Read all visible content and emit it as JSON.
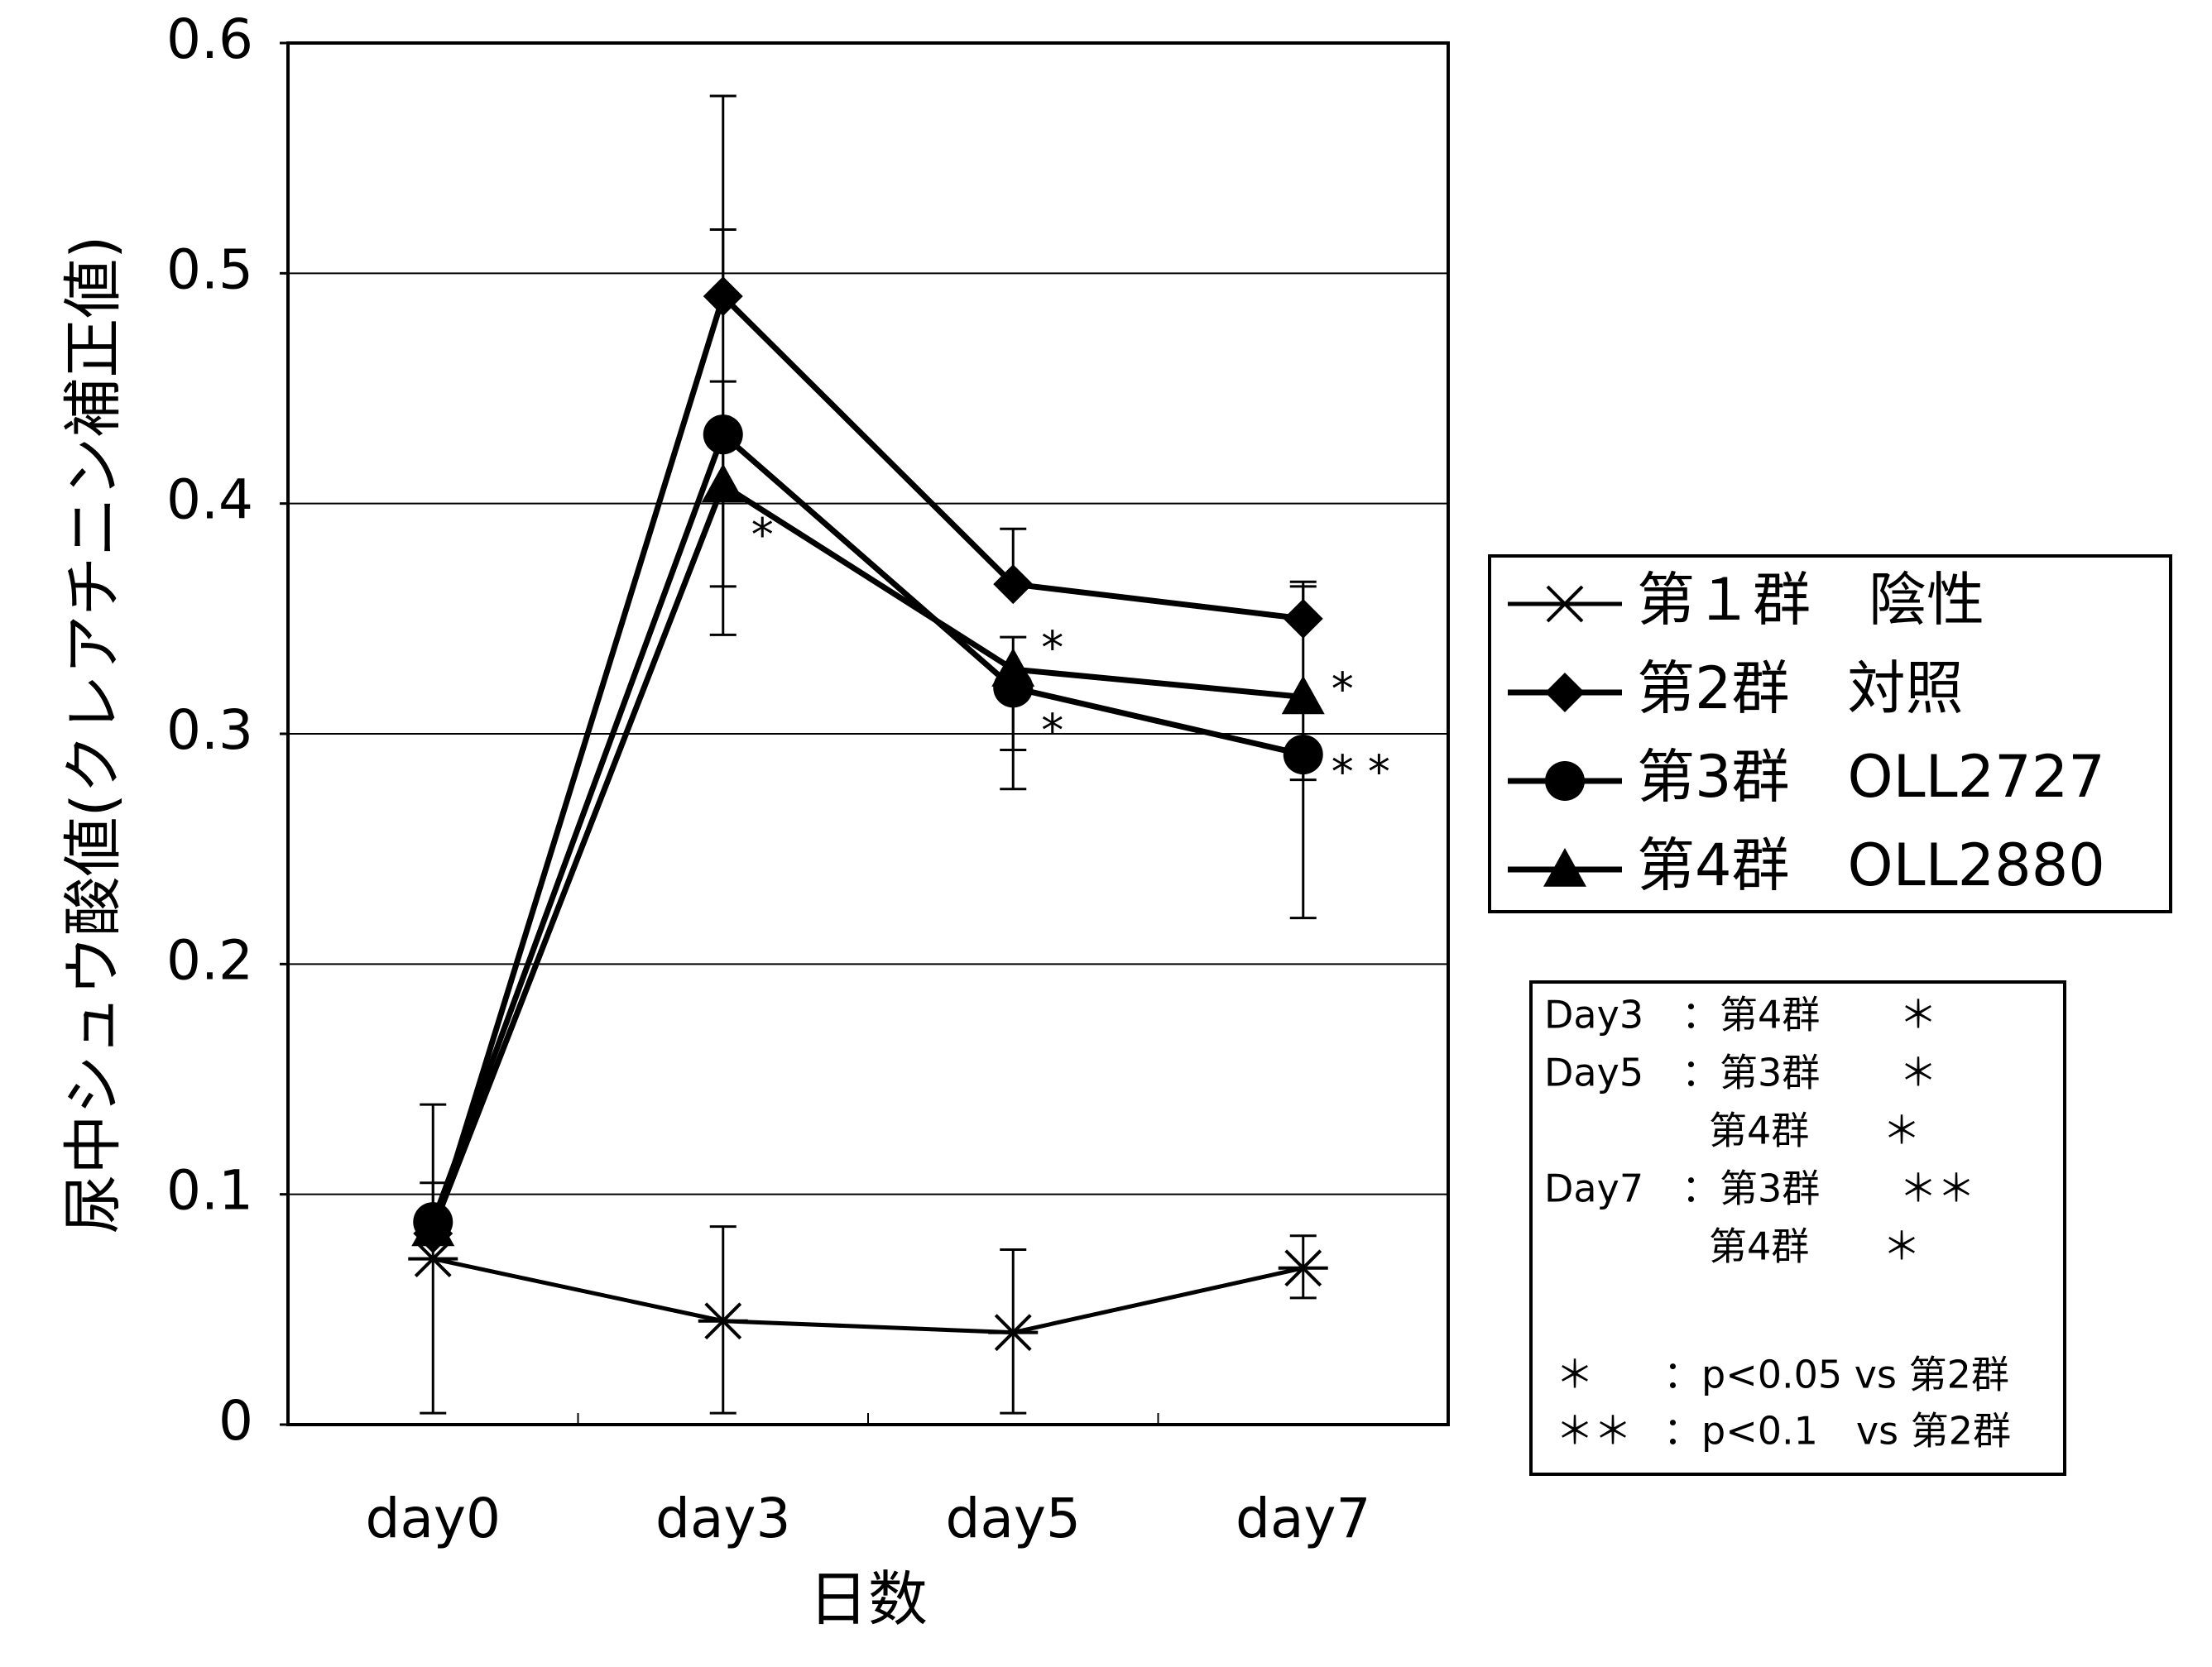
{
  "chart_data": {
    "type": "line",
    "xlabel": "日数",
    "ylabel": "尿中シュウ酸値(クレアチニン補正値)",
    "categories": [
      "day0",
      "day3",
      "day5",
      "day7"
    ],
    "ylim": [
      0,
      0.6
    ],
    "yticks": [
      "0",
      "0.1",
      "0.2",
      "0.3",
      "0.4",
      "0.5",
      "0.6"
    ],
    "grid": "horizontal",
    "legend_position": "right",
    "series": [
      {
        "name": "第１群　陰性",
        "marker": "asterisk",
        "values": [
          0.072,
          0.045,
          0.04,
          0.068
        ],
        "err_hi": [
          0.139,
          0.086,
          0.076,
          0.082
        ],
        "err_lo": [
          0.005,
          0.005,
          0.005,
          0.055
        ]
      },
      {
        "name": "第2群　対照",
        "marker": "diamond",
        "values": [
          0.083,
          0.49,
          0.365,
          0.35
        ],
        "err_hi": [
          0.105,
          0.577,
          0.389,
          0.366
        ],
        "err_lo": [
          0.083,
          0.49,
          0.365,
          0.35
        ]
      },
      {
        "name": "第3群　OLL2727",
        "marker": "circle",
        "values": [
          0.088,
          0.43,
          0.32,
          0.291
        ],
        "err_hi": [
          0.088,
          0.519,
          0.342,
          0.291
        ],
        "err_lo": [
          0.088,
          0.343,
          0.276,
          0.22
        ]
      },
      {
        "name": "第4群　OLL2880",
        "marker": "triangle",
        "values": [
          0.085,
          0.408,
          0.328,
          0.316
        ],
        "err_hi": [
          0.085,
          0.453,
          0.328,
          0.364
        ],
        "err_lo": [
          0.085,
          0.364,
          0.293,
          0.28
        ]
      }
    ],
    "annotations": [
      {
        "text": "*",
        "cat": 1,
        "y": 0.385
      },
      {
        "text": "*",
        "cat": 2,
        "y": 0.336
      },
      {
        "text": "*",
        "cat": 2,
        "y": 0.3
      },
      {
        "text": "*",
        "cat": 3,
        "y": 0.318
      },
      {
        "text": "* *",
        "cat": 3,
        "y": 0.282
      }
    ],
    "significance_box": {
      "rows": [
        [
          "Day3",
          "：第4群",
          "＊"
        ],
        [
          "Day5",
          "：第3群",
          "＊"
        ],
        [
          "",
          "第4群",
          "＊"
        ],
        [
          "Day7",
          "：第3群",
          "＊＊"
        ],
        [
          "",
          "第4群",
          "＊"
        ]
      ],
      "footnotes": [
        [
          "＊",
          "：p<0.05 vs 第2群"
        ],
        [
          "＊＊",
          "：p<0.1　vs 第2群"
        ]
      ]
    }
  }
}
